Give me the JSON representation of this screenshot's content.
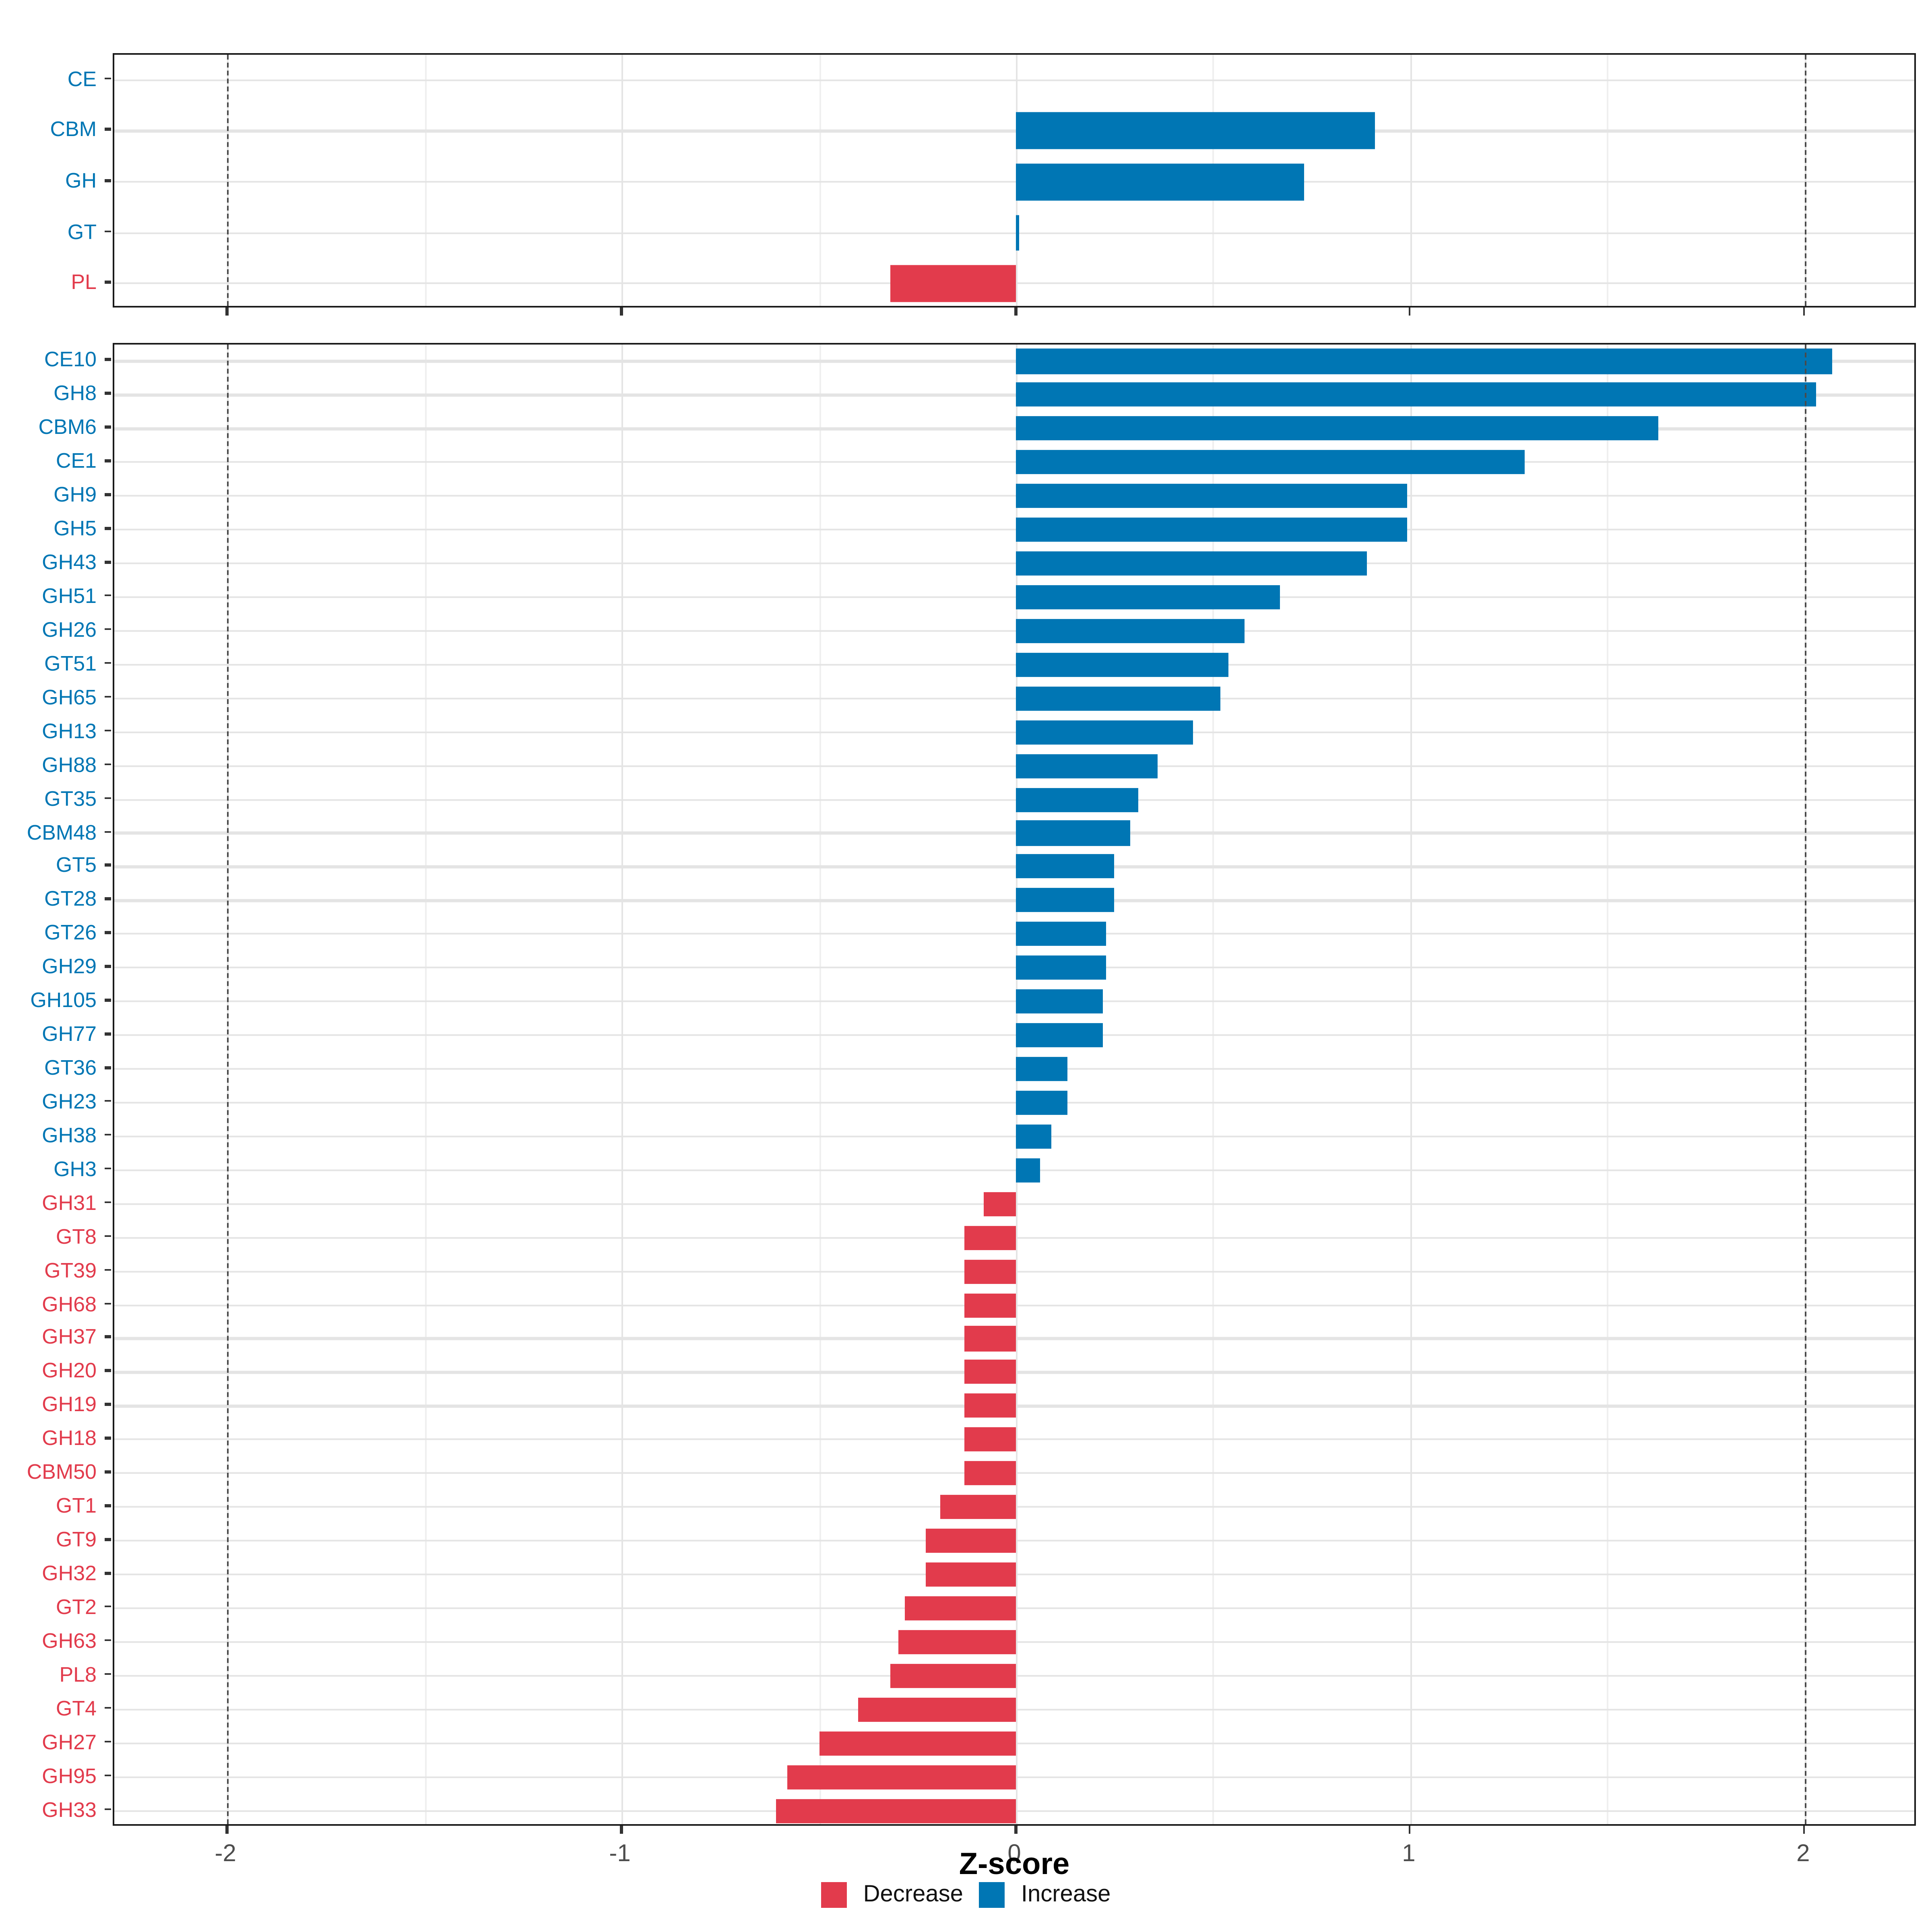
{
  "chart_data": {
    "type": "bar",
    "orientation": "horizontal",
    "title": "",
    "xlabel": "Z-score",
    "ylabel": "",
    "xlim": [
      -2.286,
      2.286
    ],
    "xticks": [
      -2,
      -1,
      0,
      1,
      2
    ],
    "xticks_minor": [
      -1.5,
      -0.5,
      0.5,
      1.5
    ],
    "dashed_lines": [
      -2,
      2
    ],
    "grid": true,
    "legend": {
      "position": "bottom",
      "items": [
        {
          "label": "Decrease",
          "color": "#e23b4c"
        },
        {
          "label": "Increase",
          "color": "#0076b4"
        }
      ]
    },
    "panels": [
      {
        "name": "cazyme-classes",
        "categories": [
          "CE",
          "CBM",
          "GH",
          "GT",
          "PL"
        ],
        "values": [
          0.0,
          0.91,
          0.73,
          0.01,
          -0.32
        ]
      },
      {
        "name": "cazyme-families",
        "categories": [
          "CE10",
          "GH8",
          "CBM6",
          "CE1",
          "GH9",
          "GH5",
          "GH43",
          "GH51",
          "GH26",
          "GT51",
          "GH65",
          "GH13",
          "GH88",
          "GT35",
          "CBM48",
          "GT5",
          "GT28",
          "GT26",
          "GH29",
          "GH105",
          "GH77",
          "GT36",
          "GH23",
          "GH38",
          "GH3",
          "GH31",
          "GT8",
          "GT39",
          "GH68",
          "GH37",
          "GH20",
          "GH19",
          "GH18",
          "CBM50",
          "GT1",
          "GT9",
          "GH32",
          "GT2",
          "GH63",
          "PL8",
          "GT4",
          "GH27",
          "GH95",
          "GH33"
        ],
        "values": [
          2.07,
          2.03,
          1.63,
          1.29,
          0.99,
          0.99,
          0.89,
          0.67,
          0.58,
          0.54,
          0.52,
          0.45,
          0.36,
          0.31,
          0.29,
          0.25,
          0.25,
          0.23,
          0.23,
          0.22,
          0.22,
          0.13,
          0.13,
          0.09,
          0.06,
          -0.08,
          -0.13,
          -0.13,
          -0.13,
          -0.13,
          -0.13,
          -0.13,
          -0.13,
          -0.13,
          -0.19,
          -0.23,
          -0.23,
          -0.28,
          -0.3,
          -0.32,
          -0.4,
          -0.5,
          -0.58,
          -0.61
        ]
      }
    ]
  },
  "colors": {
    "increase": "#0076b4",
    "decrease": "#e23b4c",
    "axis_text": "#4d4d4d",
    "panel_border": "#1a1a1a",
    "grid_major": "#e4e4e4",
    "dashed_line": "#4a4a4a"
  }
}
